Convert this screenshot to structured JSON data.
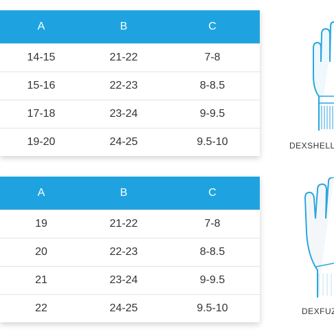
{
  "tables": [
    {
      "header": [
        "A",
        "B",
        "C"
      ],
      "rows": [
        [
          "14-15",
          "21-22",
          "7-8"
        ],
        [
          "15-16",
          "22-23",
          "8-8.5"
        ],
        [
          "17-18",
          "23-24",
          "9-9.5"
        ],
        [
          "19-20",
          "24-25",
          "9.5-10"
        ]
      ]
    },
    {
      "header": [
        "A",
        "B",
        "C"
      ],
      "rows": [
        [
          "19",
          "21-22",
          "7-8"
        ],
        [
          "20",
          "22-23",
          "8-8.5"
        ],
        [
          "21",
          "23-24",
          "9-9.5"
        ],
        [
          "22",
          "24-25",
          "9.5-10"
        ]
      ]
    }
  ],
  "gloves": [
    {
      "label": "DEXSHELL"
    },
    {
      "label": "DEXFUZ"
    }
  ]
}
